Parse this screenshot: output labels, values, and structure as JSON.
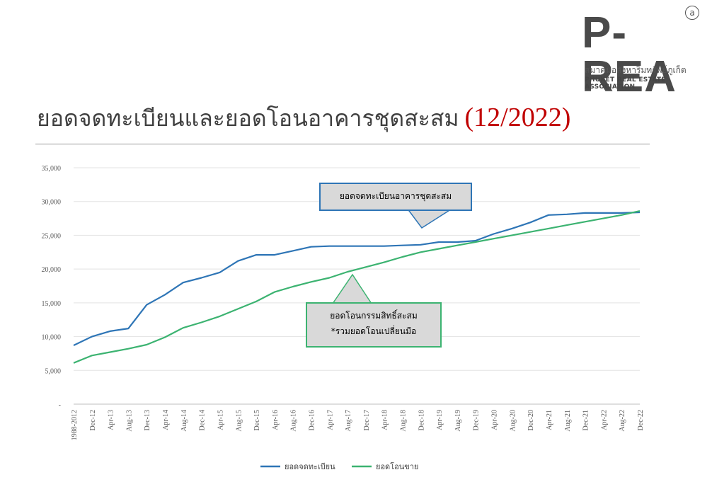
{
  "logo": {
    "mark": "P-REA",
    "registered": "a",
    "thai_name": "สมาคมอสังหาริมทรัพย์ภูเก็ต",
    "english_name": "PHUKET REAL ESTATE ASSOCIATION"
  },
  "title": {
    "main": "ยอดจดทะเบียนและยอดโอนอาคารชุดสะสม",
    "date": "(12/2022)"
  },
  "colors": {
    "registered": "#2e75b6",
    "transferred": "#3cb371",
    "title_date": "#c00000"
  },
  "chart_data": {
    "type": "line",
    "y_ticks": [
      "-",
      "5,000",
      "10,000",
      "15,000",
      "20,000",
      "25,000",
      "30,000",
      "35,000"
    ],
    "ylim": [
      0,
      35000
    ],
    "grid": true,
    "legend_position": "bottom",
    "x_tick_labels": [
      "1988-2012",
      "Dec-12",
      "Apr-13",
      "Aug-13",
      "Dec-13",
      "Apr-14",
      "Aug-14",
      "Dec-14",
      "Apr-15",
      "Aug-15",
      "Dec-15",
      "Apr-16",
      "Aug-16",
      "Dec-16",
      "Apr-17",
      "Aug-17",
      "Dec-17",
      "Apr-18",
      "Aug-18",
      "Dec-18",
      "Apr-19",
      "Aug-19",
      "Dec-19",
      "Apr-20",
      "Aug-20",
      "Dec-20",
      "Apr-21",
      "Aug-21",
      "Dec-21",
      "Apr-22",
      "Aug-22",
      "Dec-22"
    ],
    "series": [
      {
        "name": "ยอดจดทะเบียน",
        "color": "#2e75b6",
        "values": [
          8700,
          10000,
          10800,
          11200,
          14700,
          16200,
          18000,
          18700,
          19500,
          21200,
          22100,
          22100,
          22700,
          23300,
          23400,
          23400,
          23400,
          23400,
          23500,
          23600,
          24000,
          24000,
          24200,
          25200,
          26000,
          26900,
          28000,
          28100,
          28300,
          28300,
          28300,
          28400
        ]
      },
      {
        "name": "ยอดโอนขาย",
        "color": "#3cb371",
        "values": [
          6100,
          7200,
          7700,
          8200,
          8800,
          9900,
          11300,
          12100,
          13000,
          14100,
          15200,
          16600,
          17400,
          18100,
          18700,
          19600,
          20300,
          21000,
          21800,
          22500,
          23000,
          23500,
          24000,
          24500,
          25000,
          25500,
          26000,
          26500,
          27000,
          27500,
          28000,
          28600
        ]
      }
    ],
    "annotations": [
      {
        "id": "registered",
        "text": "ยอดจดทะเบียนอาคารชุดสะสม"
      },
      {
        "id": "transferred",
        "line1": "ยอดโอนกรรมสิทธิ์สะสม",
        "line2": "*รวมยอดโอนเปลี่ยนมือ"
      }
    ]
  }
}
